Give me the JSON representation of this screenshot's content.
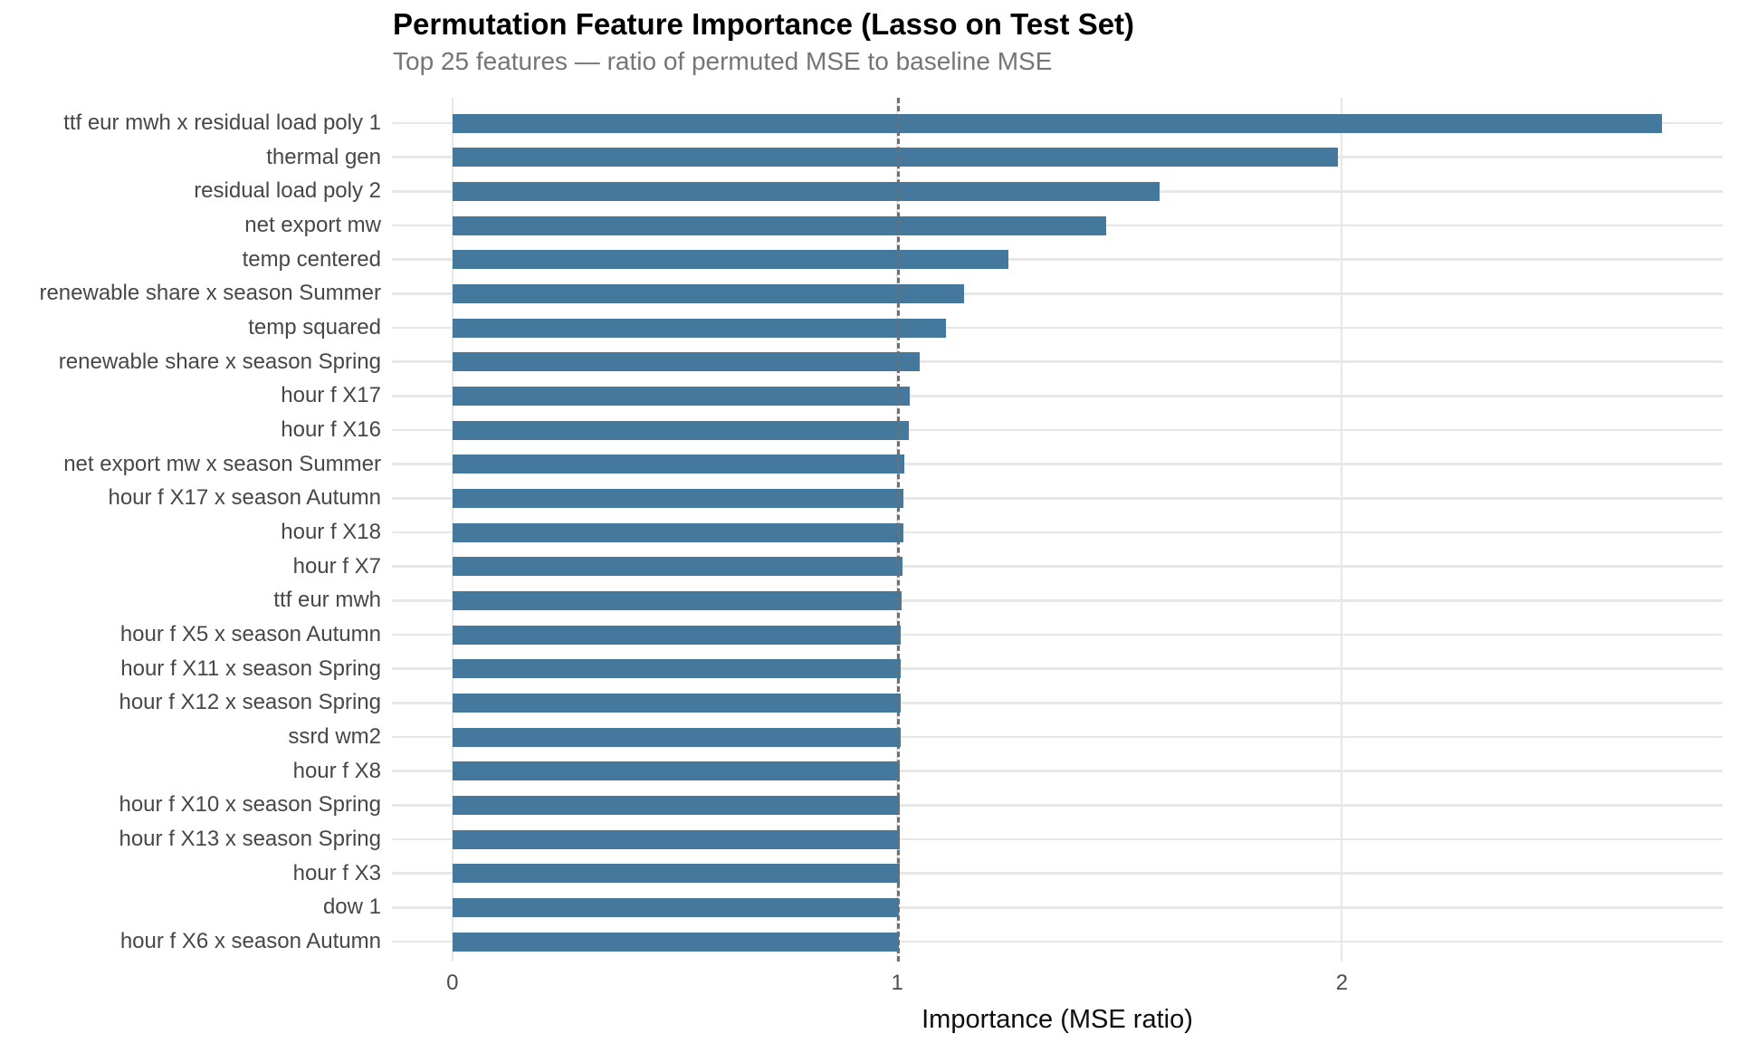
{
  "chart_data": {
    "type": "bar",
    "orientation": "horizontal",
    "title": "Permutation Feature Importance (Lasso on Test Set)",
    "subtitle": "Top 25 features — ratio of permuted MSE to baseline MSE",
    "xlabel": "Importance (MSE ratio)",
    "ylabel": "",
    "x_ticks": [
      0,
      1,
      2
    ],
    "xlim": [
      -0.136,
      2.856
    ],
    "grid": true,
    "reference_line_x": 1,
    "categories": [
      "ttf eur mwh x residual load poly 1",
      "thermal gen",
      "residual load poly 2",
      "net export mw",
      "temp centered",
      "renewable share x season Summer",
      "temp squared",
      "renewable share x season Spring",
      "hour f X17",
      "hour f X16",
      "net export mw x season Summer",
      "hour f X17 x season Autumn",
      "hour f X18",
      "hour f X7",
      "ttf eur mwh",
      "hour f X5 x season Autumn",
      "hour f X11 x season Spring",
      "hour f X12 x season Spring",
      "ssrd wm2",
      "hour f X8",
      "hour f X10 x season Spring",
      "hour f X13 x season Spring",
      "hour f X3",
      "dow 1",
      "hour f X6 x season Autumn"
    ],
    "values": [
      2.72,
      1.99,
      1.59,
      1.47,
      1.25,
      1.15,
      1.11,
      1.05,
      1.028,
      1.026,
      1.017,
      1.015,
      1.013,
      1.011,
      1.009,
      1.008,
      1.008,
      1.007,
      1.007,
      1.006,
      1.006,
      1.005,
      1.005,
      1.004,
      1.004
    ],
    "colors": {
      "bar": "#44789D",
      "grid": "#E7E7E7",
      "reference_line": "#6F6F6F",
      "title_text": "#000000",
      "subtitle_text": "#757575",
      "axis_tick_text": "#4D4D4D",
      "category_label_text": "#474747",
      "background": "#FFFFFF"
    }
  }
}
